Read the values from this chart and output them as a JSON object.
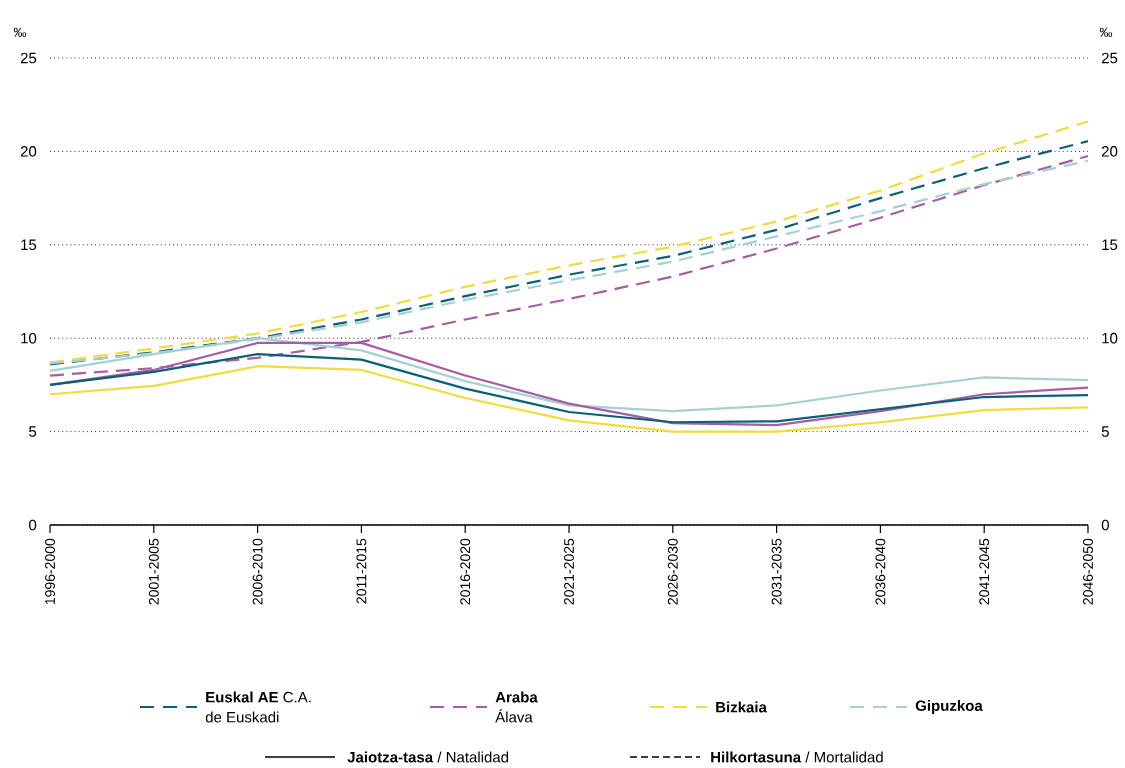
{
  "chart_data": {
    "type": "line",
    "ylabel": "‰",
    "y2label": "‰",
    "categories": [
      "1996-2000",
      "2001-2005",
      "2006-2010",
      "2011-2015",
      "2016-2020",
      "2021-2025",
      "2026-2030",
      "2031-2035",
      "2036-2040",
      "2041-2045",
      "2046-2050"
    ],
    "series": [
      {
        "name": "**Euskal AE** C.A. de Euskadi",
        "color": "#0b6077",
        "line_style": "dashed",
        "values": [
          8.6,
          9.25,
          10.0,
          11.0,
          12.25,
          13.4,
          14.4,
          15.8,
          17.5,
          19.1,
          20.55
        ]
      },
      {
        "name": "**Araba** Álava",
        "color": "#a55ea3",
        "line_style": "dashed",
        "values": [
          8.0,
          8.4,
          8.95,
          9.8,
          11.0,
          12.1,
          13.3,
          14.8,
          16.45,
          18.2,
          19.75
        ]
      },
      {
        "name": "**Bizkaia**",
        "color": "#f0dc3c",
        "line_style": "dashed",
        "values": [
          8.7,
          9.45,
          10.25,
          11.4,
          12.75,
          13.9,
          14.9,
          16.25,
          17.9,
          19.9,
          21.6
        ]
      },
      {
        "name": "**Gipuzkoa**",
        "color": "#a8d0d2",
        "line_style": "dashed",
        "values": [
          8.65,
          9.2,
          9.95,
          10.85,
          12.05,
          13.1,
          14.1,
          15.45,
          16.8,
          18.25,
          19.5
        ]
      },
      {
        "color": "#a8d0d2",
        "line_style": "solid",
        "values": [
          8.25,
          9.15,
          10.0,
          9.35,
          7.7,
          6.4,
          6.1,
          6.4,
          7.2,
          7.9,
          7.75
        ]
      },
      {
        "color": "#f0dc3c",
        "line_style": "solid",
        "values": [
          7.0,
          7.45,
          8.5,
          8.3,
          6.8,
          5.6,
          5.0,
          5.0,
          5.5,
          6.15,
          6.3
        ]
      },
      {
        "color": "#a55ea3",
        "line_style": "solid",
        "values": [
          7.5,
          8.3,
          9.75,
          9.75,
          8.0,
          6.5,
          5.45,
          5.35,
          6.1,
          7.0,
          7.35
        ]
      },
      {
        "color": "#0b6077",
        "line_style": "solid",
        "values": [
          7.5,
          8.2,
          9.15,
          8.85,
          7.3,
          6.05,
          5.5,
          5.55,
          6.2,
          6.85,
          6.95
        ]
      }
    ],
    "annotations": [
      "**Jaiotza-tasa** / Natalidad",
      "**Hilkortasuna** / Mortalidad"
    ],
    "ylim": [
      0,
      25
    ],
    "yticks": [
      0,
      5,
      10,
      15,
      20,
      25
    ],
    "y2lim": [
      0,
      25
    ],
    "y2ticks": [
      0,
      5,
      10,
      15,
      20,
      25
    ],
    "grid": "y",
    "legend": "bottom"
  }
}
